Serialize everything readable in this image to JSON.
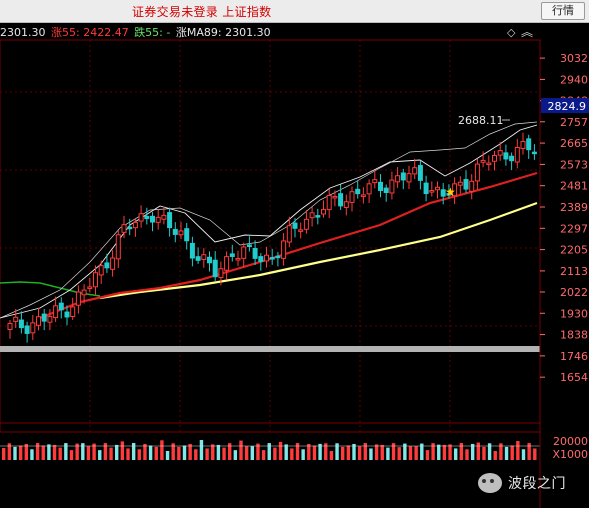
{
  "app": {
    "window_title": "证券交易未登录 上证指数",
    "quote_button": "行情"
  },
  "legend": {
    "items": [
      {
        "text": "2301.30",
        "color": "#e7e7e7"
      },
      {
        "text": "涨55: 2422.47",
        "color": "#ff3b3b"
      },
      {
        "text": "跌55: -",
        "color": "#66e066"
      },
      {
        "text": "涨MA89: 2301.30",
        "color": "#e7e7e7"
      }
    ]
  },
  "icons": {
    "diamond": "◇",
    "chevron": "︽"
  },
  "price_axis": {
    "ticks": [
      "3032",
      "2940",
      "2848",
      "2757",
      "2665",
      "2573",
      "2481",
      "2389",
      "2297",
      "2205",
      "2113",
      "2022",
      "1930",
      "1838",
      "1746",
      "1654"
    ],
    "current_label": "2824.9",
    "current_bg": "#0b1a8a"
  },
  "volume_axis": {
    "top_label": "20000",
    "unit_label": "X1000"
  },
  "watermark": {
    "text": "波段之门",
    "icon_name": "wechat-icon"
  },
  "colors": {
    "up": "#ff3b3b",
    "down": "#22cccc",
    "ma_short": "#f0f0f0",
    "ma_mid": "#e02020",
    "ma_long": "#ffff8a",
    "ma_green": "#20b020",
    "grid": "#7a0000",
    "axis_text": "#ff6b6b"
  },
  "chart_data": {
    "type": "candlestick",
    "y_axis_ticks": [
      3032,
      2940,
      2848,
      2757,
      2665,
      2573,
      2481,
      2389,
      2297,
      2205,
      2113,
      2022,
      1930,
      1838,
      1746,
      1654
    ],
    "ylim": [
      1590,
      3080
    ],
    "annotations": [
      {
        "text": "2688.11",
        "type": "high-marker"
      },
      {
        "text": "★",
        "type": "star-marker"
      }
    ],
    "volume": {
      "top_label": "20000",
      "unit": "X1000"
    },
    "series": [
      {
        "name": "2301.30"
      },
      {
        "name": "涨55: 2422.47"
      },
      {
        "name": "跌55: -"
      },
      {
        "name": "涨MA89: 2301.30"
      }
    ]
  }
}
